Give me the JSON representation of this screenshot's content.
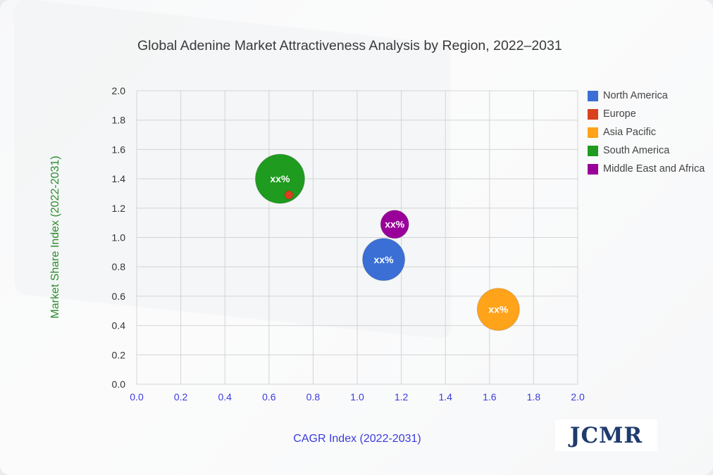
{
  "chart_data": {
    "type": "bubble",
    "title": "Global Adenine Market Attractiveness Analysis by Region, 2022–2031",
    "xlabel": "CAGR Index (2022-2031)",
    "ylabel": "Market Share Index (2022-2031)",
    "xlim": [
      0.0,
      2.0
    ],
    "ylim": [
      0.0,
      2.0
    ],
    "x_ticks": [
      "0.0",
      "0.2",
      "0.4",
      "0.6",
      "0.8",
      "1.0",
      "1.2",
      "1.4",
      "1.6",
      "1.8",
      "2.0"
    ],
    "y_ticks": [
      "0.0",
      "0.2",
      "0.4",
      "0.6",
      "0.8",
      "1.0",
      "1.2",
      "1.4",
      "1.6",
      "1.8",
      "2.0"
    ],
    "grid": true,
    "legend_position": "right",
    "series": [
      {
        "name": "North America",
        "x": 1.12,
        "y": 0.85,
        "size": 30,
        "label": "xx%",
        "color": "#3b6fd6"
      },
      {
        "name": "Europe",
        "x": 0.69,
        "y": 1.29,
        "size": 6,
        "label": "",
        "color": "#d9411e"
      },
      {
        "name": "Asia Pacific",
        "x": 1.64,
        "y": 0.51,
        "size": 30,
        "label": "xx%",
        "color": "#ffa31a"
      },
      {
        "name": "South America",
        "x": 0.65,
        "y": 1.4,
        "size": 35,
        "label": "xx%",
        "color": "#1f9b1f"
      },
      {
        "name": "Middle East and Africa",
        "x": 1.17,
        "y": 1.09,
        "size": 20,
        "label": "xx%",
        "color": "#990099"
      }
    ],
    "axis_tick_color": "#3b3bdc",
    "xlabel_color": "#3b3bdc",
    "ylabel_color": "#2e8b2e"
  },
  "logo": {
    "text": "JCMR"
  }
}
